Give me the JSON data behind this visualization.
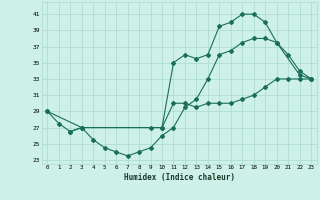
{
  "xlabel": "Humidex (Indice chaleur)",
  "bg_color": "#cdf0e8",
  "grid_color": "#b0ddd0",
  "line_color": "#1a6e5a",
  "xlim": [
    -0.5,
    23.5
  ],
  "ylim": [
    22.5,
    42.5
  ],
  "xticks": [
    0,
    1,
    2,
    3,
    4,
    5,
    6,
    7,
    8,
    9,
    10,
    11,
    12,
    13,
    14,
    15,
    16,
    17,
    18,
    19,
    20,
    21,
    22,
    23
  ],
  "yticks": [
    23,
    25,
    27,
    29,
    31,
    33,
    35,
    37,
    39,
    41
  ],
  "line1_x": [
    0,
    1,
    2,
    3,
    9,
    10,
    11,
    12,
    13,
    14,
    15,
    16,
    17,
    18,
    19,
    20,
    21,
    22,
    23
  ],
  "line1_y": [
    29,
    27.5,
    26.5,
    27,
    27,
    27,
    30,
    30,
    29.5,
    30,
    30,
    30,
    30.5,
    31,
    32,
    33,
    33,
    33,
    33
  ],
  "line2_x": [
    0,
    3,
    10,
    11,
    12,
    13,
    14,
    15,
    16,
    17,
    18,
    19,
    20,
    21,
    22,
    23
  ],
  "line2_y": [
    29,
    27,
    27,
    35,
    36,
    35.5,
    36,
    39.5,
    40,
    41,
    41,
    40,
    37.5,
    36,
    34,
    33
  ],
  "line3_x": [
    2,
    3,
    4,
    5,
    6,
    7,
    8,
    9,
    10,
    11,
    12,
    13,
    14,
    15,
    16,
    17,
    18,
    19,
    20,
    22,
    23
  ],
  "line3_y": [
    26.5,
    27,
    25.5,
    24.5,
    24,
    23.5,
    24,
    24.5,
    26,
    27,
    29.5,
    30.5,
    33,
    36,
    36.5,
    37.5,
    38,
    38,
    37.5,
    33.5,
    33
  ]
}
